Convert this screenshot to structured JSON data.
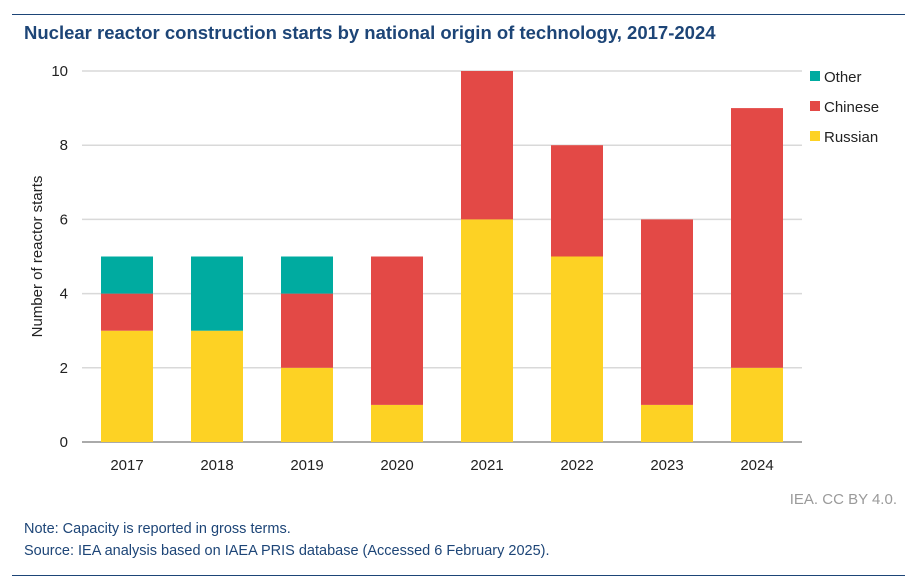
{
  "chart_data": {
    "type": "bar",
    "stacked": true,
    "title": "Nuclear reactor construction starts by national origin of technology, 2017-2024",
    "xlabel": "",
    "ylabel": "Number of reactor starts",
    "ylim": [
      0,
      10
    ],
    "yticks": [
      0,
      2,
      4,
      6,
      8,
      10
    ],
    "grid": true,
    "legend_position": "right",
    "categories": [
      "2017",
      "2018",
      "2019",
      "2020",
      "2021",
      "2022",
      "2023",
      "2024"
    ],
    "series": [
      {
        "name": "Russian",
        "color": "#fdd224",
        "values": [
          3,
          3,
          2,
          1,
          6,
          5,
          1,
          2
        ]
      },
      {
        "name": "Chinese",
        "color": "#e34946",
        "values": [
          1,
          0,
          2,
          4,
          4,
          3,
          5,
          7
        ]
      },
      {
        "name": "Other",
        "color": "#00aba0",
        "values": [
          1,
          2,
          1,
          0,
          0,
          0,
          0,
          0
        ]
      }
    ]
  },
  "credit": "IEA. CC BY 4.0.",
  "note": "Note: Capacity is reported in gross terms.",
  "source": "Source: IEA analysis based on IAEA PRIS database (Accessed 6 February 2025)."
}
